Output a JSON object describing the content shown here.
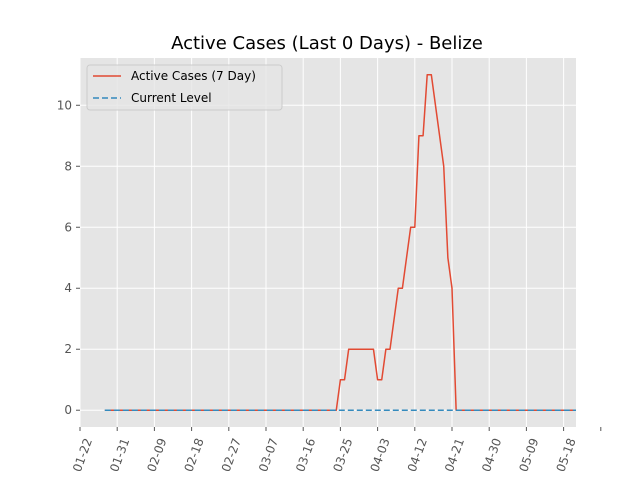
{
  "chart_data": {
    "type": "line",
    "title": "Active Cases (Last 0 Days) - Belize",
    "xlabel": "",
    "ylabel": "",
    "x_ticks": [
      "01-22",
      "01-31",
      "02-09",
      "02-18",
      "02-27",
      "03-07",
      "03-16",
      "03-25",
      "04-03",
      "04-12",
      "04-21",
      "04-30",
      "05-09",
      "05-18"
    ],
    "y_ticks": [
      0,
      2,
      4,
      6,
      8,
      10
    ],
    "ylim": [
      -0.55,
      11.55
    ],
    "grid": true,
    "legend_position": "upper left",
    "x_start": "01-22",
    "series": [
      {
        "name": "Active Cases (7 Day)",
        "style": "solid",
        "color": "#E24A33",
        "points": [
          [
            "01-28",
            0
          ],
          [
            "03-24",
            0
          ],
          [
            "03-25",
            1
          ],
          [
            "03-26",
            1
          ],
          [
            "03-27",
            2
          ],
          [
            "04-02",
            2
          ],
          [
            "04-03",
            1
          ],
          [
            "04-04",
            1
          ],
          [
            "04-05",
            2
          ],
          [
            "04-06",
            2
          ],
          [
            "04-08",
            4
          ],
          [
            "04-09",
            4
          ],
          [
            "04-11",
            6
          ],
          [
            "04-12",
            6
          ],
          [
            "04-13",
            9
          ],
          [
            "04-14",
            9
          ],
          [
            "04-15",
            11
          ],
          [
            "04-16",
            11
          ],
          [
            "04-19",
            8
          ],
          [
            "04-20",
            5
          ],
          [
            "04-21",
            4
          ],
          [
            "04-22",
            0
          ],
          [
            "05-21",
            0
          ]
        ]
      },
      {
        "name": "Current Level",
        "style": "dashed",
        "color": "#348ABD",
        "points": [
          [
            "01-28",
            0
          ],
          [
            "05-21",
            0
          ]
        ]
      }
    ]
  }
}
